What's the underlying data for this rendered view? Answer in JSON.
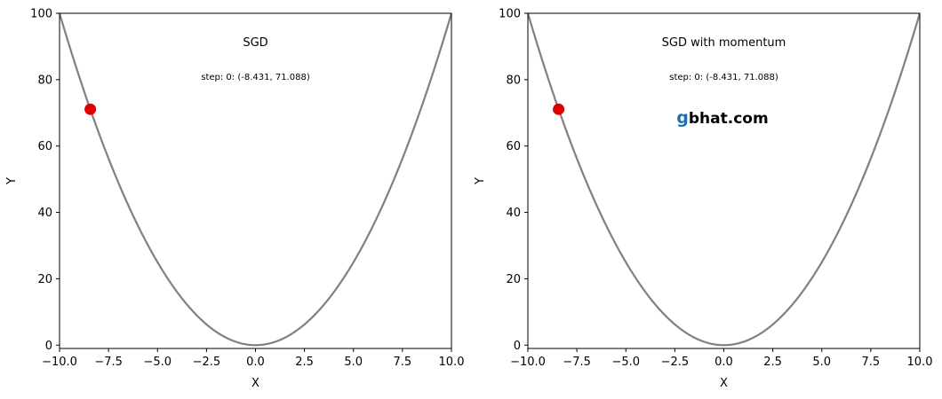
{
  "chart_data": [
    {
      "type": "line",
      "title": "SGD",
      "annotation": "step: 0: (-8.431, 71.088)",
      "xlabel": "X",
      "ylabel": "Y",
      "xlim": [
        -10,
        10
      ],
      "ylim": [
        -1,
        100
      ],
      "xticks": [
        "−10.0",
        "−7.5",
        "−5.0",
        "−2.5",
        "0.0",
        "2.5",
        "5.0",
        "7.5",
        "10.0"
      ],
      "yticks": [
        "0",
        "20",
        "40",
        "60",
        "80",
        "100"
      ],
      "curve": "y = x^2",
      "curve_color": "#808080",
      "point": {
        "x": -8.431,
        "y": 71.088,
        "color": "#e00000"
      },
      "grid": false
    },
    {
      "type": "line",
      "title": "SGD with momentum",
      "annotation": "step: 0: (-8.431, 71.088)",
      "xlabel": "X",
      "ylabel": "Y",
      "xlim": [
        -10,
        10
      ],
      "ylim": [
        -1,
        100
      ],
      "xticks": [
        "−10.0",
        "−7.5",
        "−5.0",
        "−2.5",
        "0.0",
        "2.5",
        "5.0",
        "7.5",
        "10.0"
      ],
      "yticks": [
        "0",
        "20",
        "40",
        "60",
        "80",
        "100"
      ],
      "curve": "y = x^2",
      "curve_color": "#808080",
      "point": {
        "x": -8.431,
        "y": 71.088,
        "color": "#e00000"
      },
      "grid": false,
      "watermark": {
        "first": "g",
        "rest": "bhat.com"
      }
    }
  ]
}
